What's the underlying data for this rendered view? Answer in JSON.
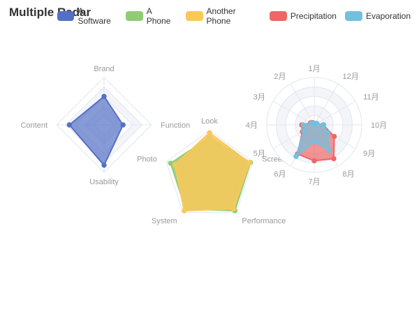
{
  "title": "Multiple Radar",
  "legend": [
    {
      "name": "A Software",
      "color": "#5470c6"
    },
    {
      "name": "A Phone",
      "color": "#91cc75"
    },
    {
      "name": "Another Phone",
      "color": "#fac858"
    },
    {
      "name": "Precipitation",
      "color": "#ee6666"
    },
    {
      "name": "Evaporation",
      "color": "#73c0de"
    }
  ],
  "chart_data": [
    {
      "type": "radar",
      "indicators": [
        {
          "name": "Brand",
          "max": 100
        },
        {
          "name": "Content",
          "max": 100
        },
        {
          "name": "Usability",
          "max": 100
        },
        {
          "name": "Function",
          "max": 100
        }
      ],
      "series": [
        {
          "name": "A Software",
          "color": "#5470c6",
          "values": [
            60,
            73,
            85,
            40
          ]
        }
      ]
    },
    {
      "type": "radar",
      "indicators": [
        {
          "name": "Look",
          "max": 100
        },
        {
          "name": "Photo",
          "max": 100
        },
        {
          "name": "System",
          "max": 100
        },
        {
          "name": "Performance",
          "max": 100
        },
        {
          "name": "Screen",
          "max": 100
        }
      ],
      "series": [
        {
          "name": "A Phone",
          "color": "#91cc75",
          "values": [
            85,
            90,
            90,
            95,
            95
          ]
        },
        {
          "name": "Another Phone",
          "color": "#fac858",
          "values": [
            95,
            80,
            95,
            90,
            93
          ]
        }
      ]
    },
    {
      "type": "radar",
      "indicators": [
        {
          "name": "1月",
          "max": 100
        },
        {
          "name": "2月",
          "max": 100
        },
        {
          "name": "3月",
          "max": 100
        },
        {
          "name": "4月",
          "max": 100
        },
        {
          "name": "5月",
          "max": 100
        },
        {
          "name": "6月",
          "max": 100
        },
        {
          "name": "7月",
          "max": 100
        },
        {
          "name": "8月",
          "max": 100
        },
        {
          "name": "9月",
          "max": 100
        },
        {
          "name": "10月",
          "max": 100
        },
        {
          "name": "11月",
          "max": 100
        },
        {
          "name": "12月",
          "max": 100
        }
      ],
      "series": [
        {
          "name": "Precipitation",
          "color": "#ee6666",
          "values": [
            2.6,
            5.9,
            9.0,
            26.4,
            28.7,
            70.7,
            75.6,
            82.2,
            48.7,
            18.8,
            6.0,
            2.3
          ]
        },
        {
          "name": "Evaporation",
          "color": "#73c0de",
          "values": [
            2.0,
            4.9,
            7.0,
            23.2,
            25.6,
            76.7,
            35.6,
            62.2,
            32.6,
            20.0,
            6.4,
            3.3
          ]
        }
      ]
    }
  ]
}
